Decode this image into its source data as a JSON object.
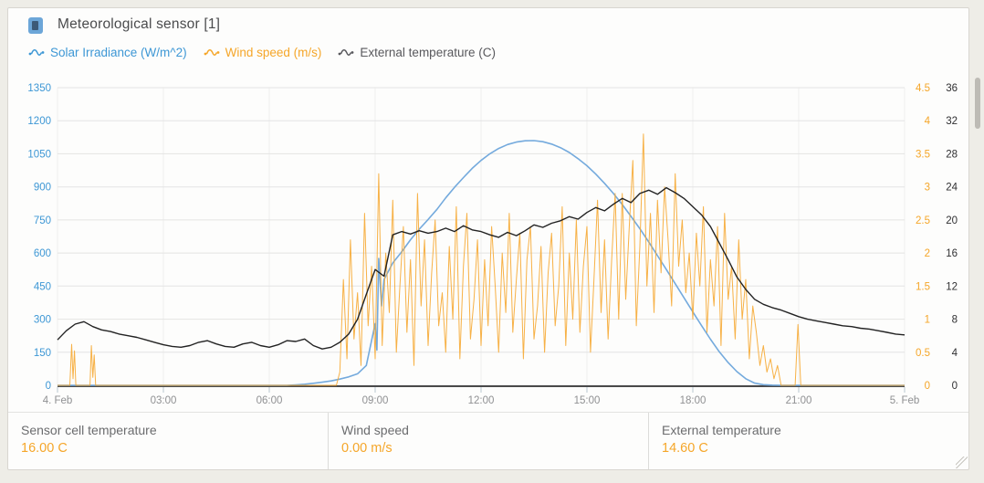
{
  "header": {
    "title": "Meteorological sensor [1]",
    "icon": "sensor-device-icon"
  },
  "legend": [
    {
      "label": "Solar Irradiance (W/m^2)",
      "color": "#3d97d5",
      "line_color": "#74aadd"
    },
    {
      "label": "Wind speed (m/s)",
      "color": "#f5a629",
      "line_color": "#f6a832"
    },
    {
      "label": "External temperature (C)",
      "color": "#58585c",
      "line_color": "#222222"
    }
  ],
  "stats": [
    {
      "label": "Sensor cell temperature",
      "value": "16.00 C"
    },
    {
      "label": "Wind speed",
      "value": "0.00 m/s"
    },
    {
      "label": "External temperature",
      "value": "14.60 C"
    }
  ],
  "palette": {
    "grid_h": "#e4e4e3",
    "grid_v": "#efefee",
    "axis_line": "#4a4a4b",
    "x_label": "#8f9092",
    "left_label": "#3d97d5",
    "wind_label": "#f5a629",
    "temp_label": "#2f2f31"
  },
  "chart_data": {
    "type": "line",
    "title": "Meteorological sensor [1]",
    "x_axis": {
      "tick_labels": [
        "4. Feb",
        "03:00",
        "06:00",
        "09:00",
        "12:00",
        "15:00",
        "18:00",
        "21:00",
        "5. Feb"
      ],
      "tick_hours": [
        0,
        3,
        6,
        9,
        12,
        15,
        18,
        21,
        24
      ],
      "range_hours": [
        0,
        24
      ],
      "grid": true
    },
    "y_axes": [
      {
        "id": "solar",
        "side": "left",
        "label_color": "#3d97d5",
        "max": 1350,
        "tick_labels": [
          "0",
          "150",
          "300",
          "450",
          "600",
          "750",
          "900",
          "1050",
          "1200",
          "1350"
        ]
      },
      {
        "id": "wind",
        "side": "right-inner",
        "label_color": "#f5a629",
        "max": 4.5,
        "tick_labels": [
          "0",
          "0.5",
          "1",
          "1.5",
          "2",
          "2.5",
          "3",
          "3.5",
          "4",
          "4.5"
        ]
      },
      {
        "id": "temp",
        "side": "right-outer",
        "label_color": "#2f2f31",
        "max": 36,
        "tick_labels": [
          "0",
          "4",
          "8",
          "12",
          "16",
          "20",
          "24",
          "28",
          "32",
          "36"
        ]
      }
    ],
    "series": [
      {
        "name": "Solar Irradiance (W/m^2)",
        "axis": "solar",
        "color": "#74aadd",
        "width": 1.6,
        "t0": 0,
        "dt": 0.25,
        "values": [
          0,
          0,
          0,
          0,
          0,
          0,
          0,
          0,
          0,
          0,
          0,
          0,
          0,
          0,
          0,
          0,
          0,
          0,
          0,
          0,
          0,
          0,
          0,
          0,
          0,
          0,
          0,
          2,
          5,
          9,
          14,
          20,
          28,
          38,
          52,
          90,
          280,
          480,
          555,
          605,
          660,
          708,
          752,
          798,
          850,
          898,
          942,
          984,
          1020,
          1050,
          1074,
          1092,
          1103,
          1109,
          1110,
          1105,
          1094,
          1078,
          1056,
          1028,
          996,
          958,
          916,
          870,
          820,
          766,
          710,
          650,
          588,
          525,
          461,
          397,
          333,
          270,
          209,
          152,
          103,
          62,
          30,
          10,
          3,
          1,
          0,
          0,
          0,
          0,
          0,
          0,
          0,
          0,
          0,
          0,
          0,
          0,
          0,
          0,
          0
        ],
        "extra": [
          [
            9.05,
            160
          ],
          [
            9.1,
            575
          ],
          [
            9.18,
            360
          ]
        ]
      },
      {
        "name": "Wind speed (m/s)",
        "axis": "wind",
        "color": "#f6a832",
        "width": 1,
        "opacity": 0.9,
        "t0": 8.0,
        "dt": 0.1,
        "values": [
          0.2,
          1.6,
          0.4,
          2.2,
          0.7,
          1.4,
          0.3,
          2.6,
          0.9,
          1.8,
          0.4,
          3.2,
          0.6,
          2.0,
          1.1,
          2.8,
          0.5,
          1.5,
          2.4,
          0.8,
          1.9,
          0.3,
          2.9,
          1.2,
          2.2,
          0.6,
          1.7,
          2.5,
          0.9,
          1.4,
          0.5,
          2.1,
          1.0,
          2.7,
          0.4,
          1.8,
          2.6,
          0.7,
          1.3,
          2.2,
          0.6,
          1.9,
          0.9,
          2.4,
          1.5,
          0.5,
          2.0,
          1.1,
          2.6,
          0.8,
          1.6,
          2.3,
          0.4,
          1.9,
          2.4,
          0.7,
          1.2,
          2.1,
          0.5,
          1.7,
          2.3,
          0.9,
          1.5,
          2.7,
          0.6,
          2.0,
          1.0,
          2.5,
          0.8,
          1.8,
          2.4,
          0.5,
          1.6,
          2.8,
          1.1,
          2.2,
          0.7,
          1.9,
          2.9,
          1.0,
          2.9,
          1.3,
          2.4,
          3.4,
          0.9,
          2.1,
          3.8,
          1.5,
          2.6,
          1.1,
          2.8,
          1.7,
          3.0,
          2.2,
          1.2,
          3.2,
          1.8,
          2.5,
          1.4,
          2.0,
          1.0,
          2.3,
          1.5,
          2.7,
          0.8,
          1.9,
          1.2,
          2.4,
          0.6,
          2.6,
          1.3,
          1.8,
          0.7,
          2.2,
          1.0,
          1.6,
          0.4,
          1.2,
          0.8,
          0.3,
          0.6,
          0.2,
          0.4,
          0.1,
          0.3,
          0.0
        ],
        "extra": [
          [
            0,
            0
          ],
          [
            0.35,
            0
          ],
          [
            0.4,
            0.62
          ],
          [
            0.44,
            0.1
          ],
          [
            0.48,
            0.52
          ],
          [
            0.52,
            0
          ],
          [
            0.92,
            0
          ],
          [
            0.96,
            0.6
          ],
          [
            1.0,
            0.12
          ],
          [
            1.04,
            0.46
          ],
          [
            1.08,
            0
          ],
          [
            7.9,
            0
          ],
          [
            20.9,
            0
          ],
          [
            20.98,
            0.92
          ],
          [
            21.06,
            0
          ],
          [
            24,
            0
          ]
        ]
      },
      {
        "name": "External temperature (C)",
        "axis": "temp",
        "color": "#222222",
        "width": 1.4,
        "t0": 0,
        "dt": 0.25,
        "values": [
          5.5,
          6.6,
          7.4,
          7.7,
          7.1,
          6.7,
          6.5,
          6.2,
          6.0,
          5.8,
          5.5,
          5.2,
          4.9,
          4.7,
          4.6,
          4.8,
          5.2,
          5.4,
          5.0,
          4.7,
          4.6,
          5.0,
          5.2,
          4.8,
          4.6,
          4.9,
          5.4,
          5.3,
          5.6,
          4.8,
          4.4,
          4.6,
          5.2,
          6.2,
          8.0,
          11.0,
          14.0,
          13.2,
          18.2,
          18.6,
          18.3,
          18.7,
          18.4,
          18.6,
          19.0,
          18.6,
          19.3,
          18.8,
          18.6,
          18.2,
          17.9,
          18.5,
          18.1,
          18.7,
          19.4,
          19.1,
          19.6,
          19.9,
          20.4,
          20.1,
          20.9,
          21.5,
          21.1,
          21.9,
          22.6,
          22.1,
          23.2,
          23.6,
          23.1,
          23.9,
          23.3,
          22.6,
          21.6,
          20.6,
          19.2,
          17.2,
          15.2,
          13.1,
          11.6,
          10.4,
          9.8,
          9.4,
          9.1,
          8.7,
          8.3,
          8.0,
          7.8,
          7.6,
          7.4,
          7.2,
          7.1,
          6.9,
          6.8,
          6.6,
          6.4,
          6.2,
          6.1
        ],
        "extra": []
      }
    ]
  }
}
